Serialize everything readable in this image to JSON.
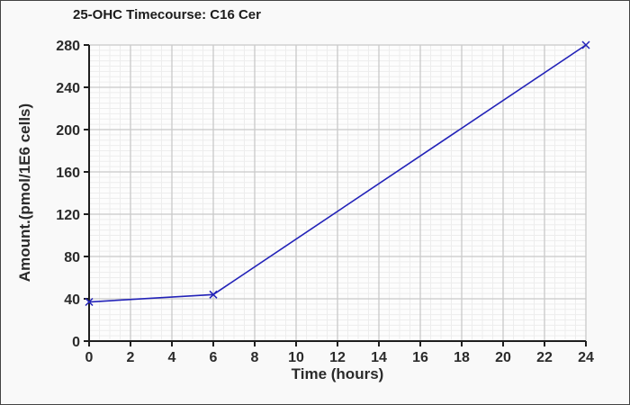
{
  "window": {
    "background": "#f9f9f9",
    "border_color": "#444444"
  },
  "chart_data": {
    "type": "line",
    "title": "25-OHC Timecourse: C16 Cer",
    "xlabel": "Time (hours)",
    "ylabel": "Amount.(pmol/1E6 cells)",
    "x": [
      0,
      6,
      24
    ],
    "series": [
      {
        "name": "C16 Cer",
        "values": [
          37,
          44,
          280
        ]
      }
    ],
    "xlim": [
      0,
      24
    ],
    "ylim": [
      0,
      280
    ],
    "x_major_ticks": [
      0,
      2,
      4,
      6,
      8,
      10,
      12,
      14,
      16,
      18,
      20,
      22,
      24
    ],
    "y_major_ticks": [
      0,
      40,
      80,
      120,
      160,
      200,
      240,
      280
    ],
    "x_minor_step": 0.5,
    "y_minor_step": 5,
    "grid": "major+minor",
    "legend": "none",
    "marker": "x",
    "line_color": "#2222b8",
    "major_grid_color": "#c9c9c9",
    "minor_grid_color": "#ededed",
    "axis_color": "#1e1e1e",
    "text_color": "#2b2b2b",
    "plot_bg": "#fdfdfd"
  }
}
